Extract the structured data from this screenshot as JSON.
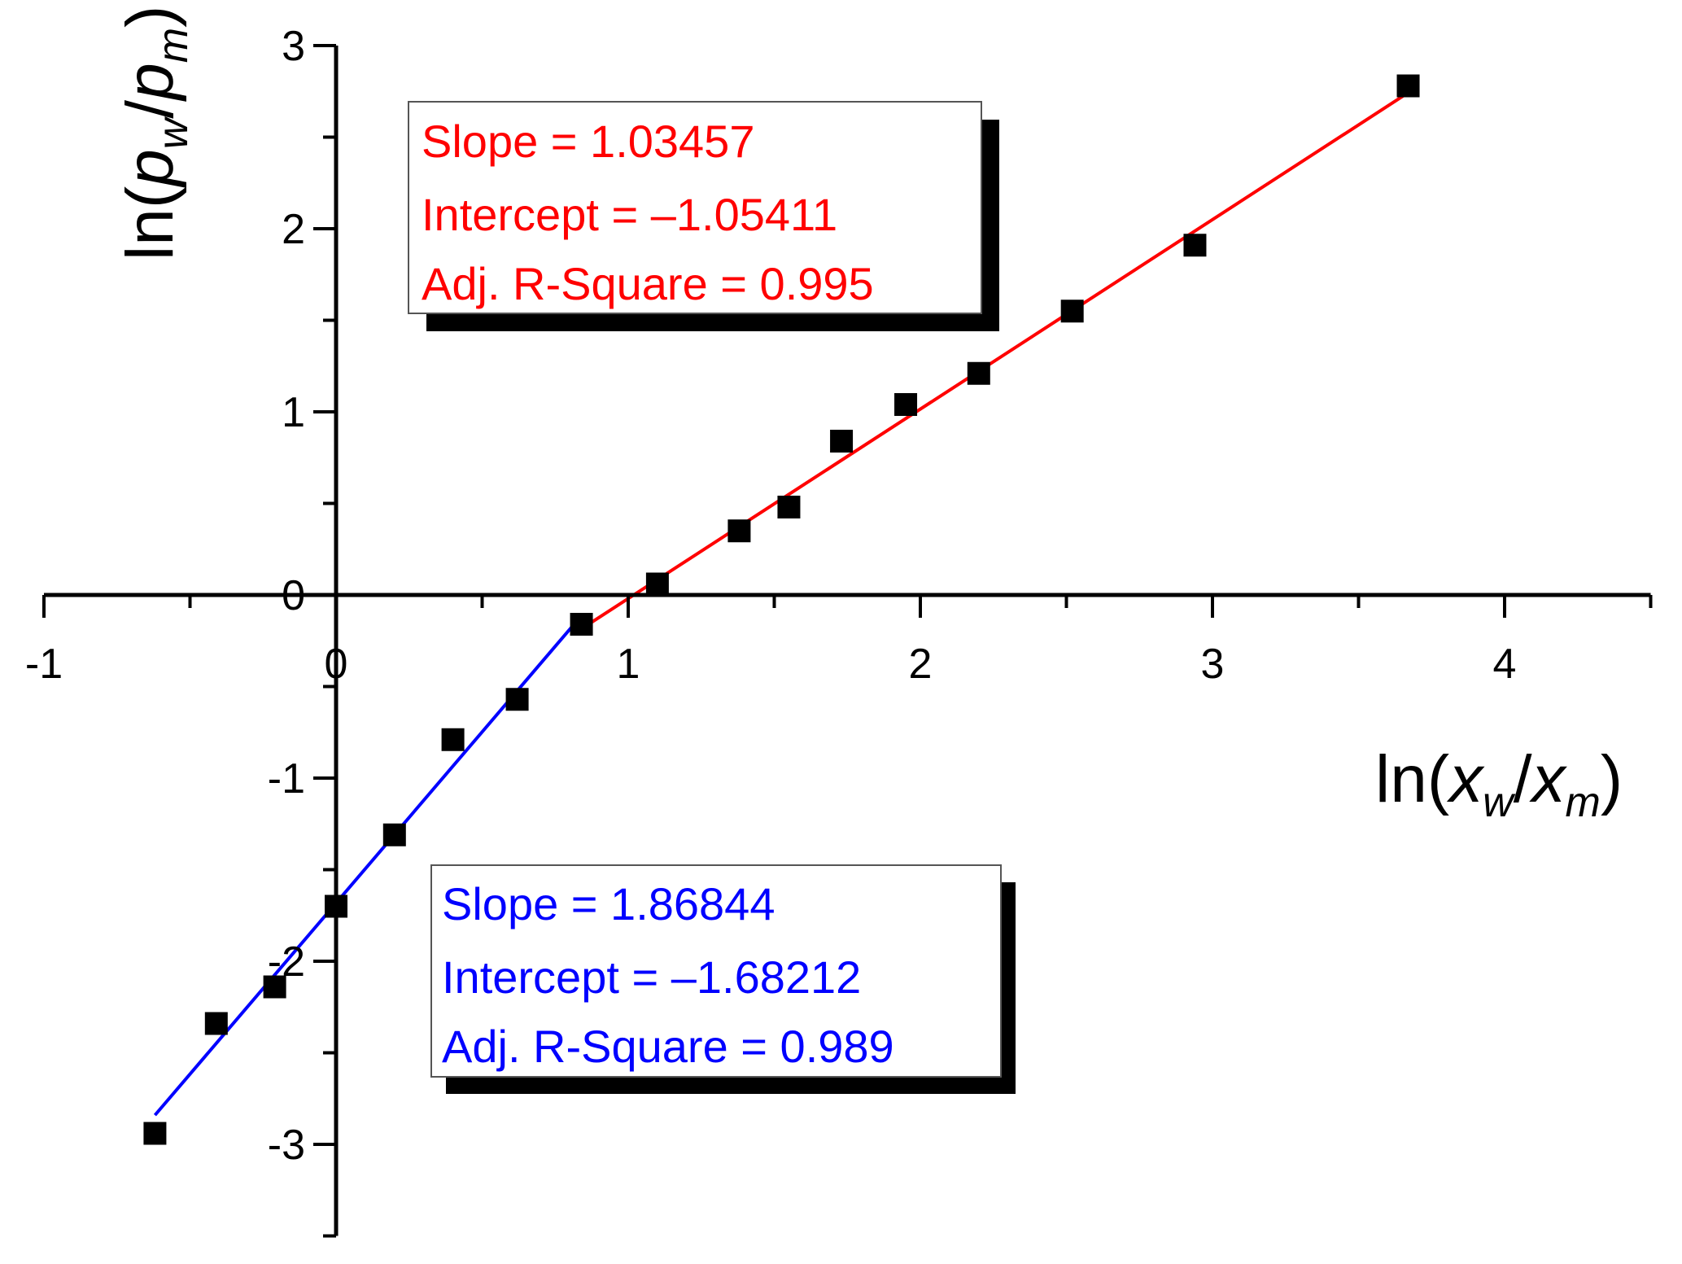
{
  "chart_data": {
    "type": "scatter",
    "xlabel": {
      "prefix": "ln(",
      "var1": "x",
      "sub1": "w",
      "slash": "/",
      "var2": "x",
      "sub2": "m",
      "suffix": ")"
    },
    "ylabel": {
      "prefix": "ln(",
      "var1": "p",
      "sub1": "w",
      "slash": "/",
      "var2": "p",
      "sub2": "m",
      "suffix": ")"
    },
    "xlim": [
      -1,
      4.5
    ],
    "ylim": [
      -3.5,
      3
    ],
    "x_ticks": [
      -1,
      0,
      1,
      2,
      3,
      4
    ],
    "x_tick_labels": [
      "-1",
      "0",
      "1",
      "2",
      "3",
      "4"
    ],
    "y_ticks": [
      -3,
      -2,
      -1,
      0,
      1,
      2,
      3
    ],
    "y_tick_labels": [
      "-3",
      "-2",
      "-1",
      "0",
      "1",
      "2",
      "3"
    ],
    "grid": false,
    "series": [
      {
        "marker": "square",
        "color": "#000000",
        "x": [
          -0.62,
          -0.41,
          -0.21,
          0.0,
          0.2,
          0.4,
          0.62,
          0.84,
          1.1,
          1.38,
          1.55,
          1.73,
          1.95,
          2.2,
          2.52,
          2.94,
          3.67
        ],
        "y": [
          -2.94,
          -2.34,
          -2.14,
          -1.7,
          -1.31,
          -0.79,
          -0.57,
          -0.16,
          0.06,
          0.35,
          0.48,
          0.84,
          1.04,
          1.21,
          1.55,
          1.91,
          2.78
        ]
      }
    ],
    "fits": [
      {
        "color": "#ff0000",
        "slope": 1.03457,
        "intercept": -1.05411,
        "x_range": [
          0.84,
          3.67
        ],
        "labels": [
          "Slope = 1.03457",
          "Intercept = –1.05411",
          "Adj. R-Square = 0.995"
        ]
      },
      {
        "color": "#0000ff",
        "slope": 1.86844,
        "intercept": -1.68212,
        "x_range": [
          -0.62,
          0.84
        ],
        "labels": [
          "Slope = 1.86844",
          "Intercept = –1.68212",
          "Adj. R-Square = 0.989"
        ]
      }
    ]
  }
}
